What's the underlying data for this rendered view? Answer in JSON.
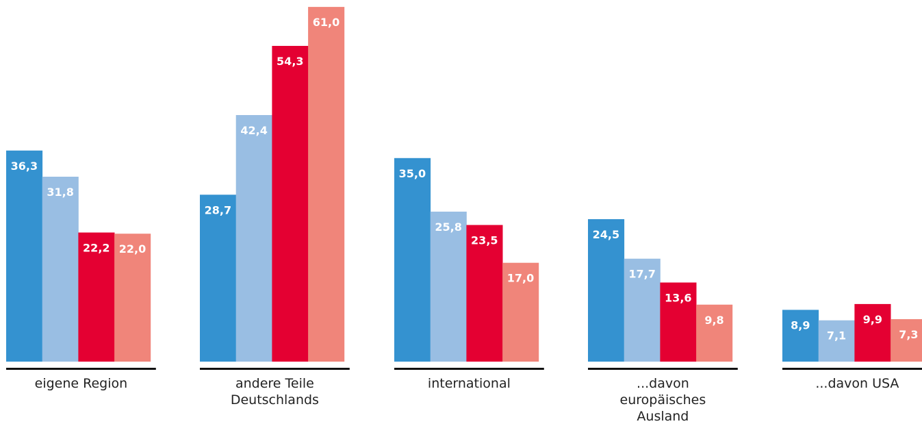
{
  "chart_data": {
    "type": "bar",
    "title": "",
    "xlabel": "",
    "ylabel": "",
    "ylim": [
      0,
      61
    ],
    "grid": false,
    "legend": "none",
    "categories": [
      [
        "eigene Region"
      ],
      [
        "andere Teile",
        "Deutschlands"
      ],
      [
        "international"
      ],
      [
        "...davon",
        "europäisches",
        "Ausland"
      ],
      [
        "...davon USA"
      ]
    ],
    "series": [
      {
        "color": "#3492d0",
        "label_color": "#ffffff",
        "values": [
          36.3,
          28.7,
          35.0,
          24.5,
          8.9
        ]
      },
      {
        "color": "#99bee3",
        "label_color": "#ffffff",
        "values": [
          31.8,
          42.4,
          25.8,
          17.7,
          7.1
        ]
      },
      {
        "color": "#e40032",
        "label_color": "#ffffff",
        "values": [
          22.2,
          54.3,
          23.5,
          13.6,
          9.9
        ]
      },
      {
        "color": "#f0857a",
        "label_color": "#ffffff",
        "values": [
          22.0,
          61.0,
          17.0,
          9.8,
          7.3
        ]
      }
    ],
    "decimal_separator": ","
  }
}
